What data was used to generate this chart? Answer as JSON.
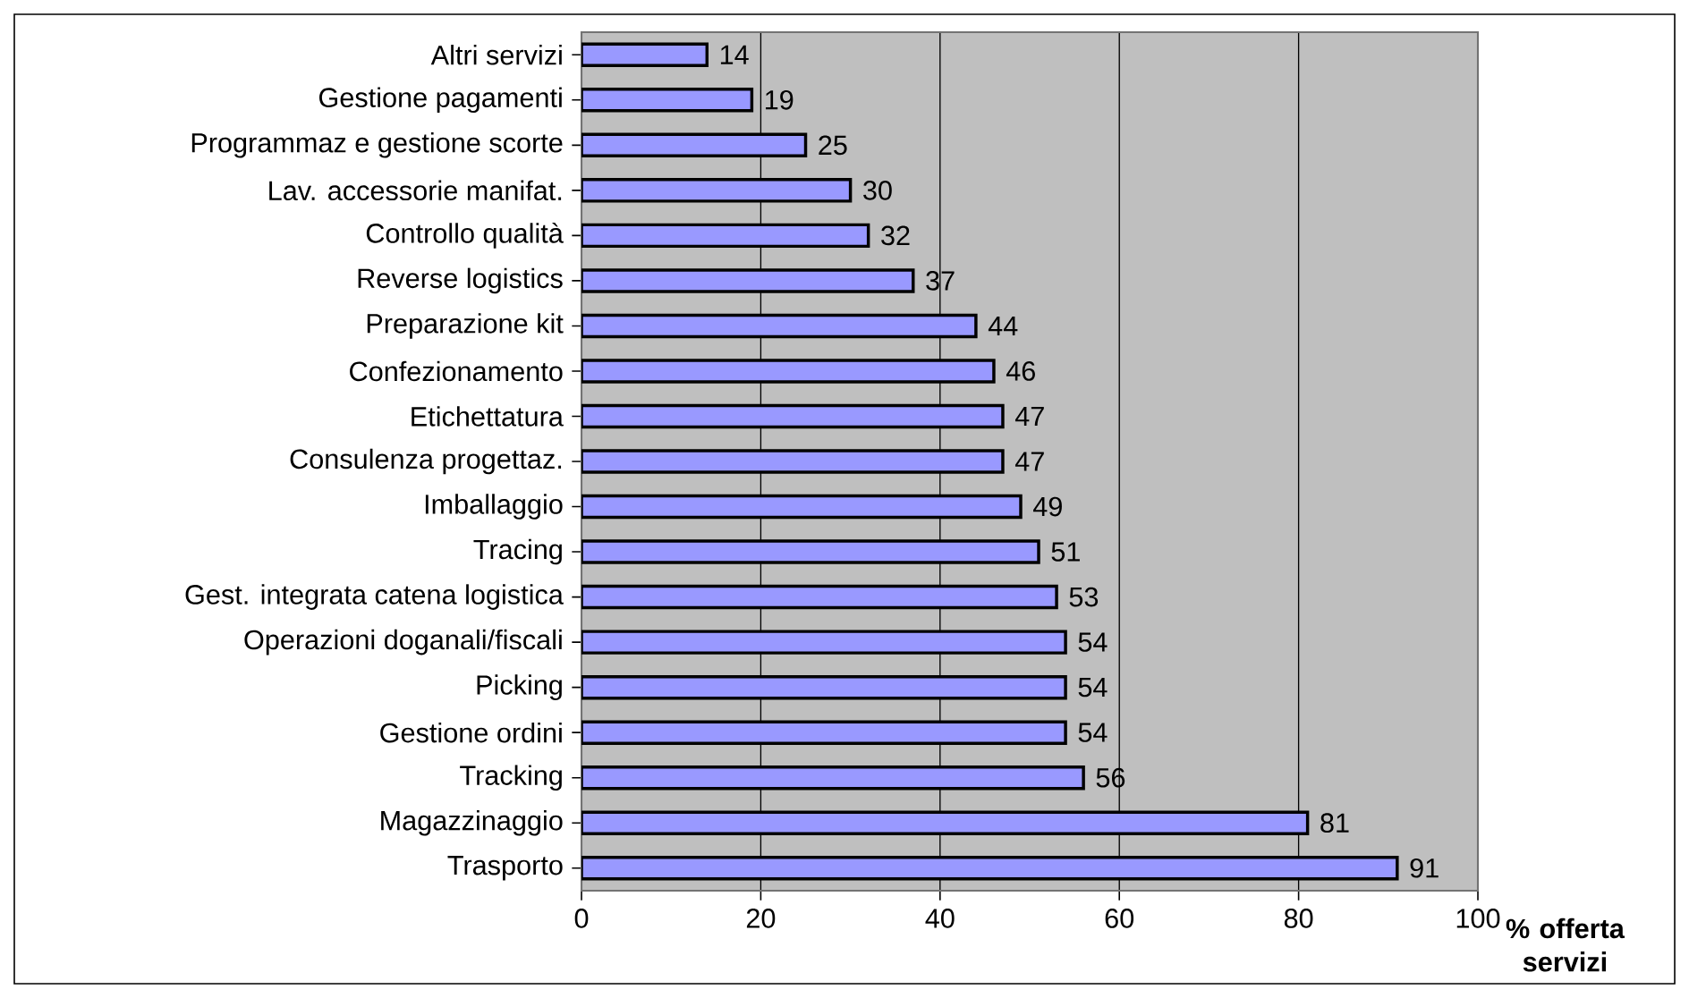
{
  "chart_data": {
    "type": "bar",
    "orientation": "horizontal",
    "xlabel": "% offerta servizi",
    "categories": [
      "Altri servizi",
      "Gestione pagamenti",
      "Programmaz e gestione scorte",
      "Lav. accessorie manifat.",
      "Controllo qualità",
      "Reverse logistics",
      "Preparazione kit",
      "Confezionamento",
      "Etichettatura",
      "Consulenza progettaz.",
      "Imballaggio",
      "Tracing",
      "Gest. integrata catena logistica",
      "Operazioni doganali/fiscali",
      "Picking",
      "Gestione ordini",
      "Tracking",
      "Magazzinaggio",
      "Trasporto"
    ],
    "values": [
      14,
      19,
      25,
      30,
      32,
      37,
      44,
      46,
      47,
      47,
      49,
      51,
      53,
      54,
      54,
      54,
      56,
      81,
      91
    ],
    "color": "#9999ff",
    "xlim": [
      0,
      100
    ],
    "xticks": [
      0,
      20,
      40,
      60,
      80,
      100
    ],
    "grid": "x",
    "data_labels": true
  }
}
